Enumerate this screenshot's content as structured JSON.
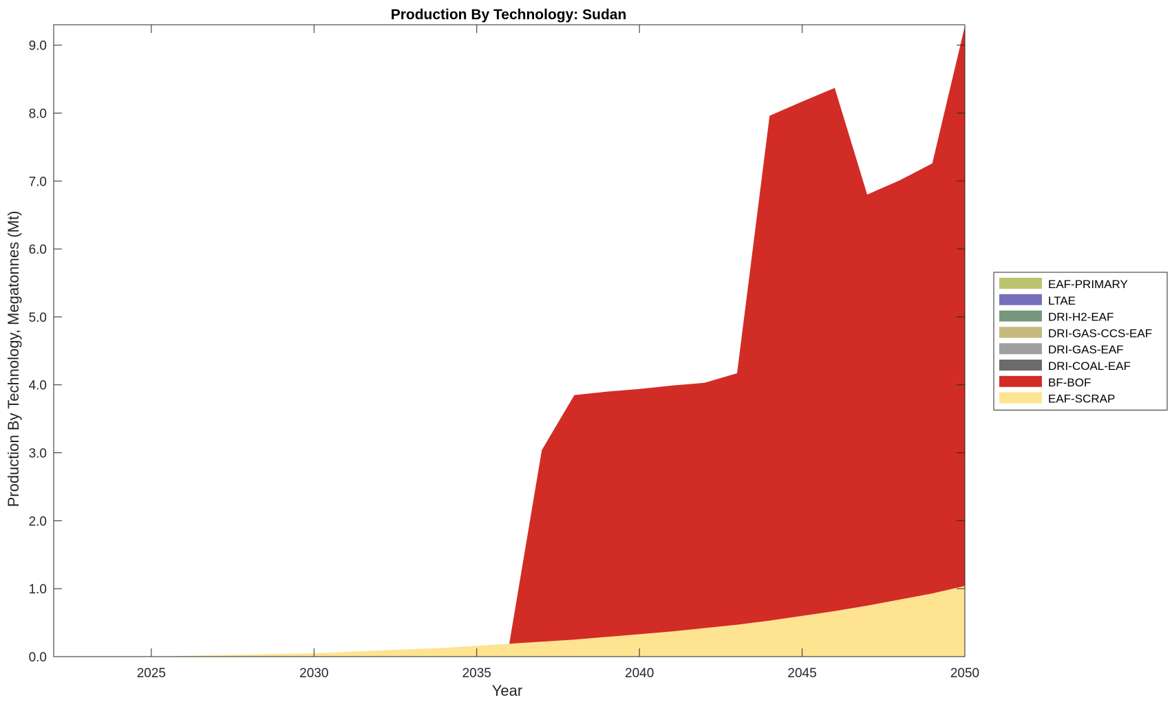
{
  "chart_data": {
    "type": "area",
    "stacked": true,
    "title": "Production By Technology: Sudan",
    "xlabel": "Year",
    "ylabel": "Production By Technology, Megatonnes (Mt)",
    "xlim": [
      2022,
      2050
    ],
    "ylim": [
      0,
      9.3
    ],
    "xticks": [
      "2025",
      "2030",
      "2035",
      "2040",
      "2045",
      "2050"
    ],
    "yticks": [
      "0.0",
      "1.0",
      "2.0",
      "3.0",
      "4.0",
      "5.0",
      "6.0",
      "7.0",
      "8.0",
      "9.0"
    ],
    "grid": false,
    "legend_position": "right",
    "x": [
      2022,
      2023,
      2024,
      2025,
      2026,
      2027,
      2028,
      2029,
      2030,
      2031,
      2032,
      2033,
      2034,
      2035,
      2036,
      2037,
      2038,
      2039,
      2040,
      2041,
      2042,
      2043,
      2044,
      2045,
      2046,
      2047,
      2048,
      2049,
      2050
    ],
    "series": [
      {
        "name": "EAF-SCRAP",
        "color": "#fee391",
        "values": [
          0,
          0,
          0,
          0,
          0.01,
          0.02,
          0.03,
          0.04,
          0.05,
          0.07,
          0.09,
          0.11,
          0.13,
          0.16,
          0.19,
          0.22,
          0.25,
          0.29,
          0.33,
          0.37,
          0.42,
          0.47,
          0.53,
          0.6,
          0.67,
          0.75,
          0.84,
          0.93,
          1.04
        ]
      },
      {
        "name": "BF-BOF",
        "color": "#d22c26",
        "values": [
          0,
          0,
          0,
          0,
          0,
          0,
          0,
          0,
          0,
          0,
          0,
          0,
          0,
          0,
          0,
          2.82,
          3.6,
          3.61,
          3.61,
          3.62,
          3.61,
          3.7,
          7.43,
          7.57,
          7.7,
          6.05,
          6.17,
          6.33,
          8.24
        ]
      },
      {
        "name": "DRI-COAL-EAF",
        "color": "#6b6b6b",
        "values": [
          0,
          0,
          0,
          0,
          0,
          0,
          0,
          0,
          0,
          0,
          0,
          0,
          0,
          0,
          0,
          0,
          0,
          0,
          0,
          0,
          0,
          0,
          0,
          0,
          0,
          0,
          0,
          0,
          0
        ]
      },
      {
        "name": "DRI-GAS-EAF",
        "color": "#9f9f9f",
        "values": [
          0,
          0,
          0,
          0,
          0,
          0,
          0,
          0,
          0,
          0,
          0,
          0,
          0,
          0,
          0,
          0,
          0,
          0,
          0,
          0,
          0,
          0,
          0,
          0,
          0,
          0,
          0,
          0,
          0
        ]
      },
      {
        "name": "DRI-GAS-CCS-EAF",
        "color": "#c6b97d",
        "values": [
          0,
          0,
          0,
          0,
          0,
          0,
          0,
          0,
          0,
          0,
          0,
          0,
          0,
          0,
          0,
          0,
          0,
          0,
          0,
          0,
          0,
          0,
          0,
          0,
          0,
          0,
          0,
          0,
          0
        ]
      },
      {
        "name": "DRI-H2-EAF",
        "color": "#77977c",
        "values": [
          0,
          0,
          0,
          0,
          0,
          0,
          0,
          0,
          0,
          0,
          0,
          0,
          0,
          0,
          0,
          0,
          0,
          0,
          0,
          0,
          0,
          0,
          0,
          0,
          0,
          0,
          0,
          0,
          0
        ]
      },
      {
        "name": "LTAE",
        "color": "#7670bb",
        "values": [
          0,
          0,
          0,
          0,
          0,
          0,
          0,
          0,
          0,
          0,
          0,
          0,
          0,
          0,
          0,
          0,
          0,
          0,
          0,
          0,
          0,
          0,
          0,
          0,
          0,
          0,
          0,
          0,
          0
        ]
      },
      {
        "name": "EAF-PRIMARY",
        "color": "#bcc56d",
        "values": [
          0,
          0,
          0,
          0,
          0,
          0,
          0,
          0,
          0,
          0,
          0,
          0,
          0,
          0,
          0,
          0,
          0,
          0,
          0,
          0,
          0,
          0,
          0,
          0,
          0,
          0,
          0,
          0,
          0
        ]
      }
    ],
    "legend_order": [
      "EAF-PRIMARY",
      "LTAE",
      "DRI-H2-EAF",
      "DRI-GAS-CCS-EAF",
      "DRI-GAS-EAF",
      "DRI-COAL-EAF",
      "BF-BOF",
      "EAF-SCRAP"
    ]
  }
}
